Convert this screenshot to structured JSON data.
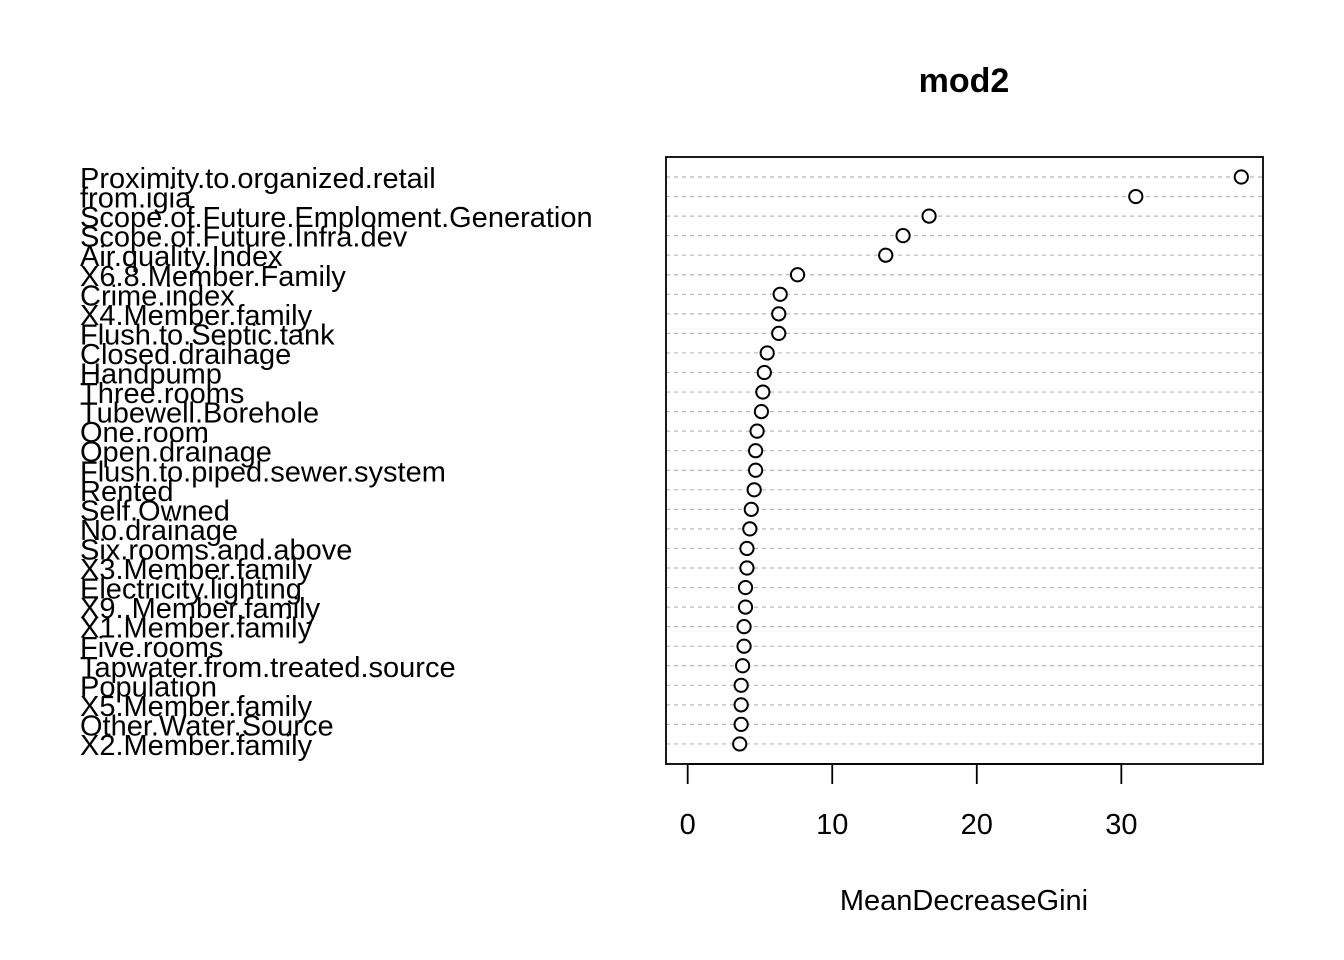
{
  "chart_data": {
    "type": "scatter",
    "title": "mod2",
    "xlabel": "MeanDecreaseGini",
    "ylabel": "",
    "xlim": [
      -1.5,
      39.8
    ],
    "xticks": [
      0,
      10,
      20,
      30
    ],
    "grid": "dashed horizontal guide lines",
    "categories": [
      "Proximity.to.organized.retail",
      "from.igia",
      "Scope.of.Future.Emploment.Generation",
      "Scope.of.Future.Infra.dev",
      "Air.quality.Index",
      "X6.8.Member.Family",
      "Crime.index",
      "X4.Member.family",
      "Flush.to.Septic.tank",
      "Closed.drainage",
      "Handpump",
      "Three.rooms",
      "Tubewell.Borehole",
      "One.room",
      "Open.drainage",
      "Flush.to.piped.sewer.system",
      "Rented",
      "Self.Owned",
      "No.drainage",
      "Six.rooms.and.above",
      "X3.Member.family",
      "Electricity.lighting",
      "X9..Member.family",
      "X1.Member.family",
      "Five.rooms",
      "Tapwater.from.treated.source",
      "Population",
      "X5.Member.family",
      "Other.Water.Source",
      "X2.Member.family"
    ],
    "values": [
      38.3,
      31.0,
      16.7,
      14.9,
      13.7,
      7.6,
      6.4,
      6.3,
      6.3,
      5.5,
      5.3,
      5.2,
      5.1,
      4.8,
      4.7,
      4.7,
      4.6,
      4.4,
      4.3,
      4.1,
      4.1,
      4.0,
      4.0,
      3.9,
      3.9,
      3.8,
      3.7,
      3.7,
      3.7,
      3.6
    ]
  }
}
